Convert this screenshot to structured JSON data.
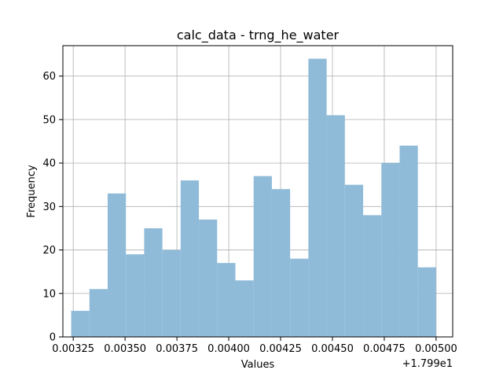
{
  "chart_data": {
    "type": "bar",
    "subtype": "histogram",
    "title": "calc_data - trng_he_water",
    "xlabel": "Values",
    "ylabel": "Frequency",
    "offset_label": "+1.799e1",
    "xlim": [
      0.0032,
      0.00508
    ],
    "ylim": [
      0,
      67
    ],
    "grid": true,
    "bar_color": "#8fbbd9",
    "bin_edges": [
      0.00324,
      0.003328,
      0.003416,
      0.003504,
      0.003592,
      0.00368,
      0.003768,
      0.003856,
      0.003944,
      0.004032,
      0.00412,
      0.004208,
      0.004296,
      0.004384,
      0.004472,
      0.00456,
      0.004648,
      0.004736,
      0.004824,
      0.004912,
      0.005
    ],
    "counts": [
      6,
      11,
      33,
      19,
      25,
      20,
      36,
      27,
      17,
      13,
      37,
      34,
      18,
      64,
      51,
      35,
      28,
      40,
      44,
      16
    ],
    "x_ticks": [
      {
        "value": 0.00325,
        "label": "0.00325"
      },
      {
        "value": 0.0035,
        "label": "0.00350"
      },
      {
        "value": 0.00375,
        "label": "0.00375"
      },
      {
        "value": 0.004,
        "label": "0.00400"
      },
      {
        "value": 0.00425,
        "label": "0.00425"
      },
      {
        "value": 0.0045,
        "label": "0.00450"
      },
      {
        "value": 0.00475,
        "label": "0.00475"
      },
      {
        "value": 0.005,
        "label": "0.00500"
      }
    ],
    "y_ticks": [
      {
        "value": 0,
        "label": "0"
      },
      {
        "value": 10,
        "label": "10"
      },
      {
        "value": 20,
        "label": "20"
      },
      {
        "value": 30,
        "label": "30"
      },
      {
        "value": 40,
        "label": "40"
      },
      {
        "value": 50,
        "label": "50"
      },
      {
        "value": 60,
        "label": "60"
      }
    ]
  }
}
